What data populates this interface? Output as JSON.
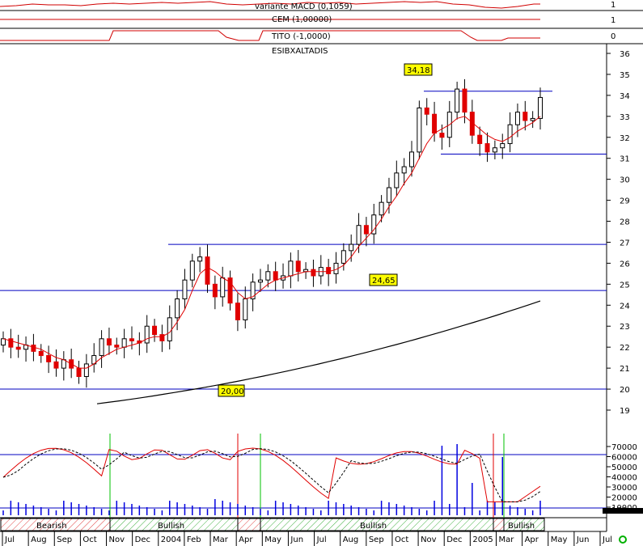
{
  "chart_data": {
    "type": "candlestick",
    "ticker": "ESIBXALTADIS",
    "indicator_panels": [
      {
        "label": "variante MACD (0,1059)",
        "value_ticks": [
          "1"
        ]
      },
      {
        "label": "CEM (1,00000)",
        "value_ticks": [
          "1"
        ]
      },
      {
        "label": "TITO (-1,0000)",
        "value_ticks": [
          "0"
        ]
      }
    ],
    "price_axis": {
      "min": 19,
      "max": 36,
      "ticks": [
        "19",
        "20",
        "21",
        "22",
        "23",
        "24",
        "25",
        "26",
        "27",
        "28",
        "29",
        "30",
        "31",
        "32",
        "33",
        "34",
        "35",
        "36"
      ]
    },
    "volume_axis": {
      "ticks": [
        "70000",
        "60000",
        "50000",
        "40000",
        "30000",
        "20000",
        "10000",
        "100"
      ]
    },
    "time_axis": [
      "Jul",
      "Aug",
      "Sep",
      "Oct",
      "Nov",
      "Dec",
      "2004",
      "Feb",
      "Mar",
      "Apr",
      "May",
      "Jun",
      "Jul",
      "Aug",
      "Sep",
      "Oct",
      "Nov",
      "Dec",
      "2005",
      "Mar",
      "Apr",
      "May",
      "Jun",
      "Jul"
    ],
    "price_tags": [
      {
        "text": "34,18",
        "value": 34.18
      },
      {
        "text": "24,65",
        "value": 24.65
      },
      {
        "text": "20,00",
        "value": 20.0
      }
    ],
    "horizontal_lines": [
      34.2,
      31.2,
      26.9,
      24.7,
      20.0
    ],
    "trend_labels": [
      "Bearish",
      "Bullish",
      "Bullish",
      "Bullish"
    ],
    "weekly_closes": [
      22.4,
      22.0,
      21.9,
      22.1,
      21.8,
      21.6,
      21.3,
      21.0,
      21.4,
      21.0,
      20.6,
      21.2,
      21.6,
      22.4,
      22.1,
      22.0,
      22.4,
      22.3,
      22.2,
      23.0,
      22.6,
      22.3,
      23.4,
      24.3,
      25.2,
      26.1,
      26.3,
      25.0,
      24.4,
      25.3,
      24.1,
      23.3,
      24.3,
      25.1,
      25.2,
      25.6,
      25.2,
      25.4,
      26.1,
      25.6,
      25.7,
      25.4,
      25.8,
      25.5,
      26.0,
      26.6,
      26.9,
      27.8,
      27.4,
      28.3,
      28.9,
      29.6,
      30.3,
      30.6,
      31.3,
      33.4,
      33.1,
      32.2,
      32.0,
      33.2,
      34.3,
      33.2,
      32.1,
      31.7,
      31.3,
      31.5,
      31.7,
      32.6,
      33.2,
      32.8,
      32.9,
      33.9
    ],
    "ma_short": [
      22.4,
      22.3,
      22.2,
      22.1,
      22.0,
      21.9,
      21.7,
      21.5,
      21.4,
      21.2,
      21.0,
      21.0,
      21.2,
      21.5,
      21.7,
      21.9,
      22.0,
      22.1,
      22.2,
      22.4,
      22.5,
      22.5,
      22.7,
      23.2,
      23.8,
      24.7,
      25.5,
      25.8,
      25.6,
      25.3,
      25.1,
      24.6,
      24.3,
      24.4,
      24.7,
      25.0,
      25.2,
      25.3,
      25.4,
      25.5,
      25.6,
      25.6,
      25.6,
      25.6,
      25.7,
      25.9,
      26.3,
      26.8,
      27.2,
      27.6,
      28.1,
      28.7,
      29.2,
      29.8,
      30.3,
      31.0,
      31.7,
      32.2,
      32.4,
      32.6,
      32.9,
      33.0,
      32.7,
      32.4,
      32.1,
      31.9,
      31.8,
      32.0,
      32.3,
      32.5,
      32.7,
      33.0
    ],
    "ma_long": {
      "from": 19.3,
      "to": 24.2
    }
  }
}
